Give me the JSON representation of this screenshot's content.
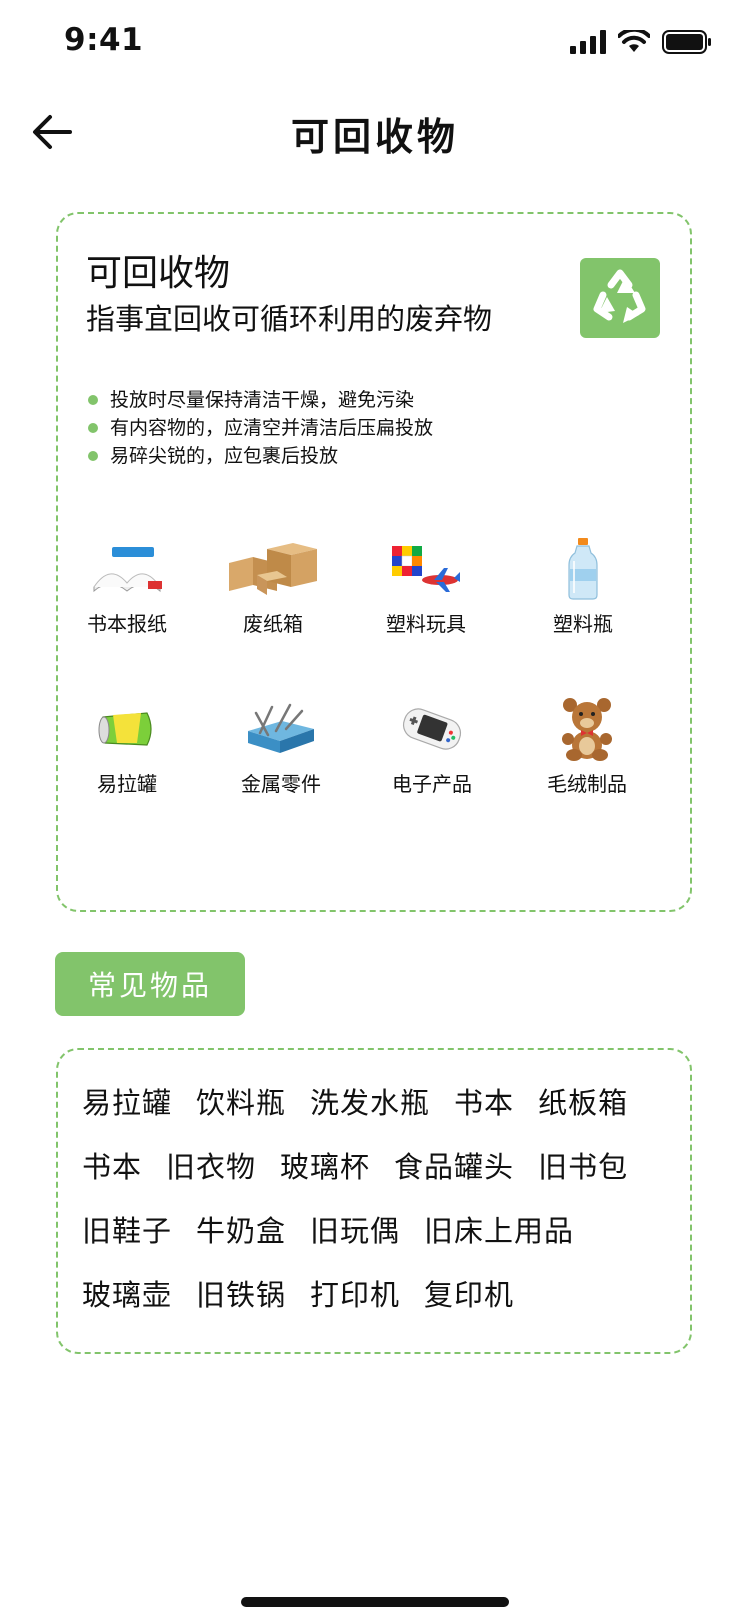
{
  "status_bar": {
    "time": "9:41"
  },
  "nav": {
    "title": "可回收物"
  },
  "card": {
    "title": "可回收物",
    "subtitle": "指事宜回收可循环利用的废弃物",
    "tips": [
      "投放时尽量保持清洁干燥，避免污染",
      "有内容物的，应清空并清洁后压扁投放",
      "易碎尖锐的，应包裹后投放"
    ],
    "categories": [
      {
        "label": "书本报纸",
        "icon": "book-icon"
      },
      {
        "label": "废纸箱",
        "icon": "cardboard-box-icon"
      },
      {
        "label": "塑料玩具",
        "icon": "toy-icon"
      },
      {
        "label": "塑料瓶",
        "icon": "plastic-bottle-icon"
      },
      {
        "label": "易拉罐",
        "icon": "can-icon"
      },
      {
        "label": "金属零件",
        "icon": "metal-parts-icon"
      },
      {
        "label": "电子产品",
        "icon": "game-console-icon"
      },
      {
        "label": "毛绒制品",
        "icon": "teddy-bear-icon"
      }
    ]
  },
  "common_items": {
    "tag": "常见物品",
    "rows": [
      [
        "易拉罐",
        "饮料瓶",
        "洗发水瓶",
        "书本",
        "纸板箱"
      ],
      [
        "书本",
        "旧衣物",
        "玻璃杯",
        "食品罐头",
        "旧书包"
      ],
      [
        "旧鞋子",
        "牛奶盒",
        "旧玩偶",
        "旧床上用品"
      ],
      [
        "玻璃壶",
        "旧铁锅",
        "打印机",
        "复印机"
      ]
    ]
  },
  "colors": {
    "accent": "#82c46b"
  }
}
